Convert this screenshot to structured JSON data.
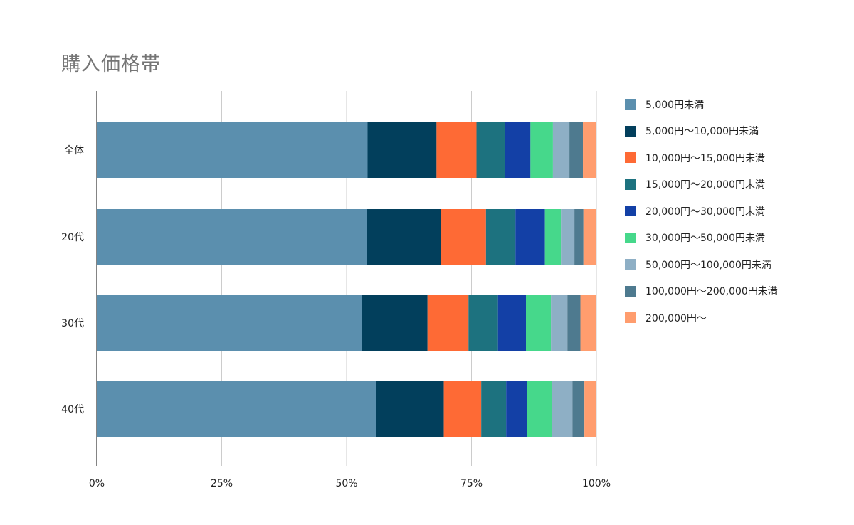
{
  "chart_data": {
    "type": "bar",
    "orientation": "horizontal",
    "stacked": "percent",
    "title": "購入価格帯",
    "categories": [
      "全体",
      "20代",
      "30代",
      "40代"
    ],
    "x_ticks": [
      "0%",
      "25%",
      "50%",
      "75%",
      "100%"
    ],
    "xlim": [
      0,
      100
    ],
    "grid": true,
    "legend_position": "right",
    "series": [
      {
        "name": "5,000円未満",
        "color": "#5b8fae",
        "values": [
          54.2,
          54.0,
          53.0,
          56.0
        ]
      },
      {
        "name": "5,000円〜10,000円未満",
        "color": "#023f5c",
        "values": [
          13.8,
          14.9,
          13.2,
          13.6
        ]
      },
      {
        "name": "10,000円〜15,000円未満",
        "color": "#fe6a35",
        "values": [
          8.0,
          9.0,
          8.2,
          7.5
        ]
      },
      {
        "name": "15,000円〜20,000円未満",
        "color": "#1d727f",
        "values": [
          5.7,
          5.9,
          5.9,
          5.0
        ]
      },
      {
        "name": "20,000円〜30,000円未満",
        "color": "#1340a6",
        "values": [
          5.1,
          5.9,
          5.6,
          4.2
        ]
      },
      {
        "name": "30,000円〜50,000円未満",
        "color": "#46d88b",
        "values": [
          4.5,
          3.2,
          5.0,
          5.0
        ]
      },
      {
        "name": "50,000円〜100,000円未満",
        "color": "#8eafc5",
        "values": [
          3.3,
          2.7,
          3.3,
          4.1
        ]
      },
      {
        "name": "100,000円〜200,000円未満",
        "color": "#4e7a8f",
        "values": [
          2.7,
          1.8,
          2.6,
          2.4
        ]
      },
      {
        "name": "200,000円〜",
        "color": "#ff9d6e",
        "values": [
          2.7,
          2.6,
          3.2,
          2.4
        ]
      }
    ]
  }
}
